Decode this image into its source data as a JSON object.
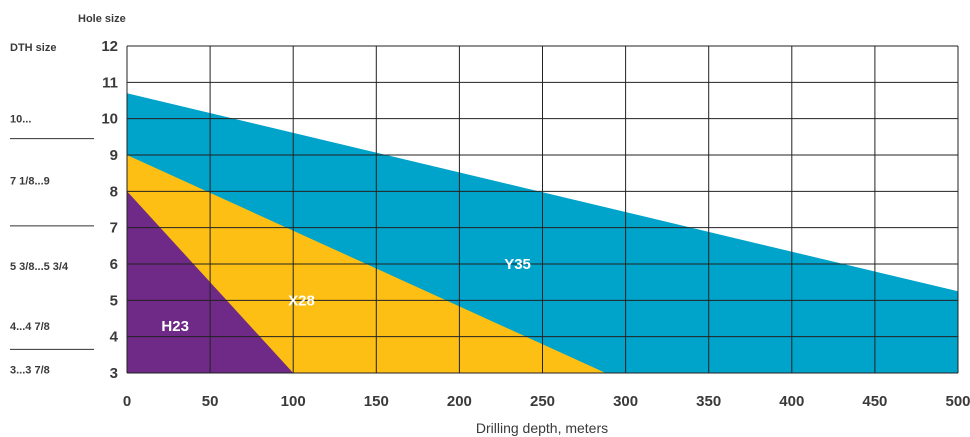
{
  "chart_data": {
    "type": "area",
    "title": "",
    "ylabel": "Hole size",
    "xlabel": "Drilling depth, meters",
    "xlim": [
      0,
      500
    ],
    "ylim": [
      3,
      12
    ],
    "x_ticks": [
      "0",
      "50",
      "100",
      "150",
      "200",
      "250",
      "300",
      "350",
      "400",
      "450",
      "500"
    ],
    "y_ticks": [
      "3",
      "4",
      "5",
      "6",
      "7",
      "8",
      "9",
      "10",
      "11",
      "12"
    ],
    "grid": true,
    "series": [
      {
        "name": "Y35",
        "color": "#00a3c9",
        "points": [
          [
            0,
            10.7
          ],
          [
            500,
            5.25
          ],
          [
            500,
            3
          ],
          [
            0,
            3
          ]
        ]
      },
      {
        "name": "X28",
        "color": "#fdbf13",
        "points": [
          [
            0,
            9.0
          ],
          [
            288,
            3
          ],
          [
            0,
            3
          ]
        ]
      },
      {
        "name": "H23",
        "color": "#6e2a86",
        "points": [
          [
            0,
            8.0
          ],
          [
            100,
            3
          ],
          [
            0,
            3
          ]
        ]
      }
    ],
    "area_labels": [
      {
        "text": "Y35",
        "x": 235,
        "y": 6.0
      },
      {
        "text": "X28",
        "x": 105,
        "y": 5.0
      },
      {
        "text": "H23",
        "x": 29,
        "y": 4.3
      }
    ],
    "dth": {
      "header": "DTH size",
      "labels": [
        {
          "text": "10...",
          "y": 10.0
        },
        {
          "text": "7 1/8...9",
          "y": 8.3
        },
        {
          "text": "5 3/8...5 3/4",
          "y": 5.95
        },
        {
          "text": "4...4 7/8",
          "y": 4.3
        },
        {
          "text": "3...3 7/8",
          "y": 3.1
        }
      ],
      "separators": [
        9.45,
        7.05,
        3.65
      ]
    }
  }
}
